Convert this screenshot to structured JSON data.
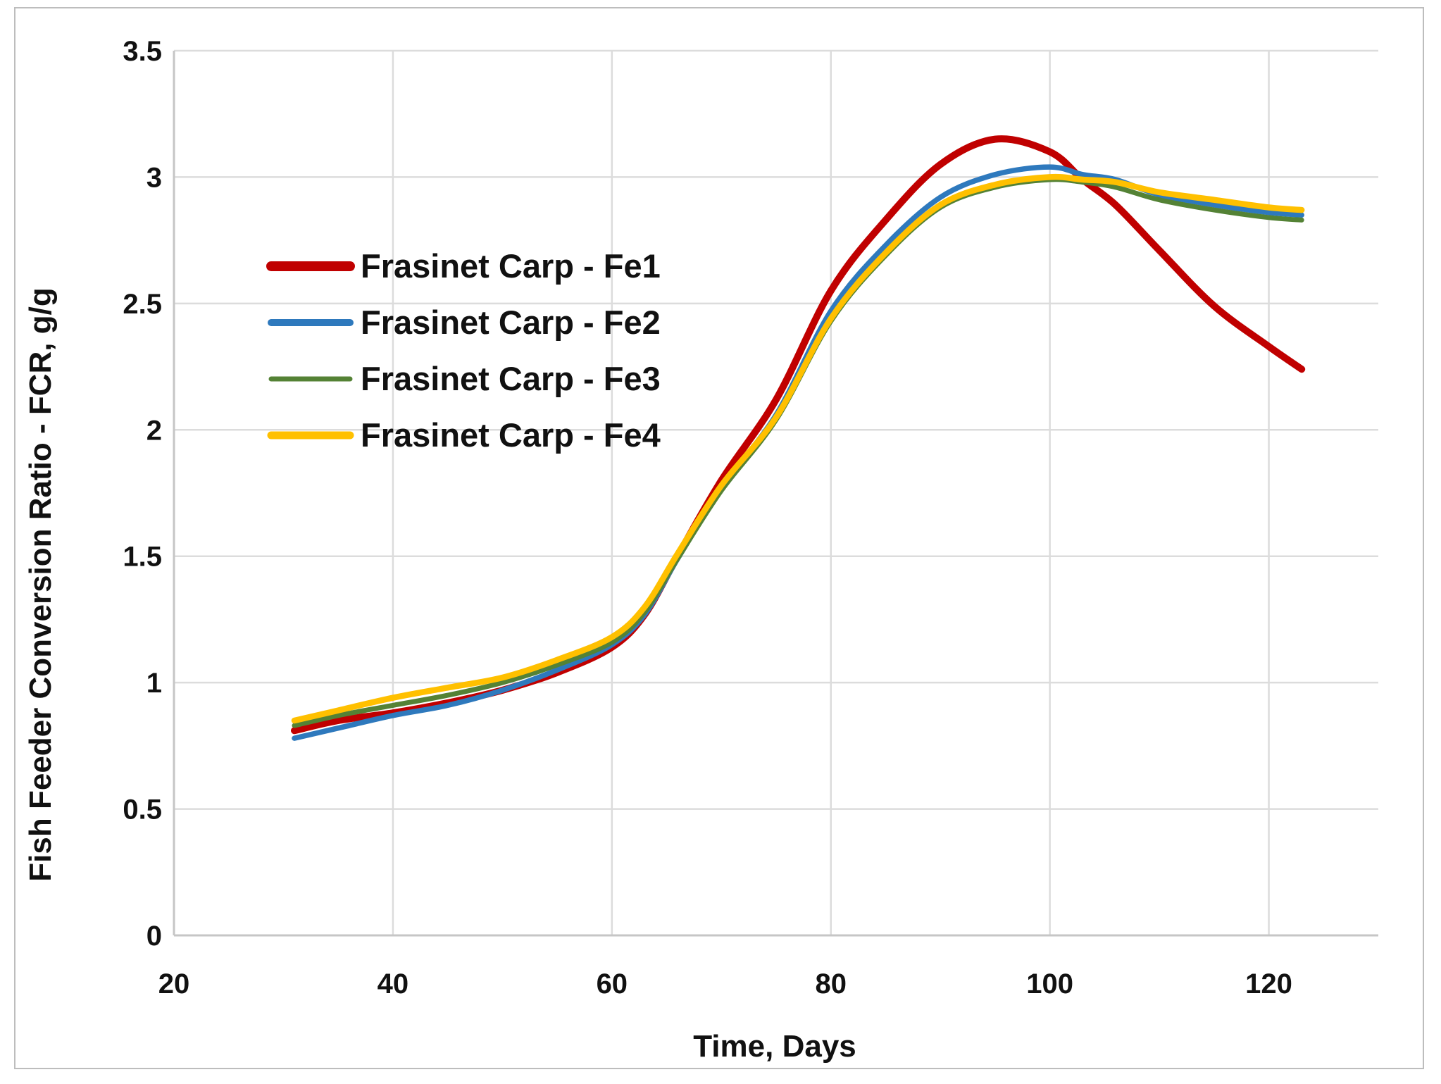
{
  "figure": {
    "kind": "statistical line chart figure",
    "background": "#FFFFFF",
    "frame_color": "#BDBDBD"
  },
  "chart_data": {
    "type": "line",
    "title": "",
    "xlabel": "Time, Days",
    "ylabel": "Fish Feeder Conversion Ratio -  FCR, g/g",
    "xlim": [
      20,
      130
    ],
    "ylim": [
      0,
      3.5
    ],
    "xticks": [
      20,
      40,
      60,
      80,
      100,
      120
    ],
    "xtick_labels": [
      "20",
      "40",
      "60",
      "80",
      "100",
      "120"
    ],
    "yticks": [
      0,
      0.5,
      1,
      1.5,
      2,
      2.5,
      3,
      3.5
    ],
    "ytick_labels": [
      "0",
      "0.5",
      "1",
      "1.5",
      "2",
      "2.5",
      "3",
      "3.5"
    ],
    "grid": true,
    "legend_position": "inside-upper-left",
    "x": [
      31,
      35,
      40,
      45,
      50,
      55,
      60,
      63,
      66,
      70,
      75,
      80,
      85,
      90,
      95,
      100,
      103,
      106,
      110,
      115,
      120,
      123
    ],
    "series": [
      {
        "id": "fe1",
        "name": "Frasinet Carp - Fe1",
        "color": "#C00000",
        "values": [
          0.81,
          0.85,
          0.88,
          0.92,
          0.97,
          1.04,
          1.14,
          1.27,
          1.5,
          1.8,
          2.12,
          2.55,
          2.83,
          3.05,
          3.15,
          3.1,
          2.99,
          2.89,
          2.71,
          2.49,
          2.33,
          2.24
        ]
      },
      {
        "id": "fe2",
        "name": "Frasinet Carp - Fe2",
        "color": "#2E79BD",
        "values": [
          0.78,
          0.82,
          0.87,
          0.91,
          0.97,
          1.05,
          1.15,
          1.27,
          1.49,
          1.77,
          2.06,
          2.47,
          2.73,
          2.92,
          3.01,
          3.04,
          3.01,
          2.99,
          2.93,
          2.89,
          2.86,
          2.85
        ]
      },
      {
        "id": "fe3",
        "name": "Frasinet Carp - Fe3",
        "color": "#548235",
        "values": [
          0.83,
          0.87,
          0.91,
          0.95,
          1.0,
          1.07,
          1.16,
          1.28,
          1.49,
          1.76,
          2.04,
          2.43,
          2.69,
          2.88,
          2.96,
          2.99,
          2.98,
          2.96,
          2.91,
          2.87,
          2.84,
          2.83
        ]
      },
      {
        "id": "fe4",
        "name": "Frasinet Carp - Fe4",
        "color": "#FFC000",
        "values": [
          0.85,
          0.89,
          0.94,
          0.98,
          1.02,
          1.09,
          1.18,
          1.3,
          1.51,
          1.78,
          2.05,
          2.44,
          2.7,
          2.89,
          2.97,
          3.0,
          2.99,
          2.98,
          2.94,
          2.91,
          2.88,
          2.87
        ]
      }
    ],
    "colors": {
      "gridline": "#DCDCDC",
      "axis": "#C6C6C6",
      "text": "#111111"
    }
  }
}
